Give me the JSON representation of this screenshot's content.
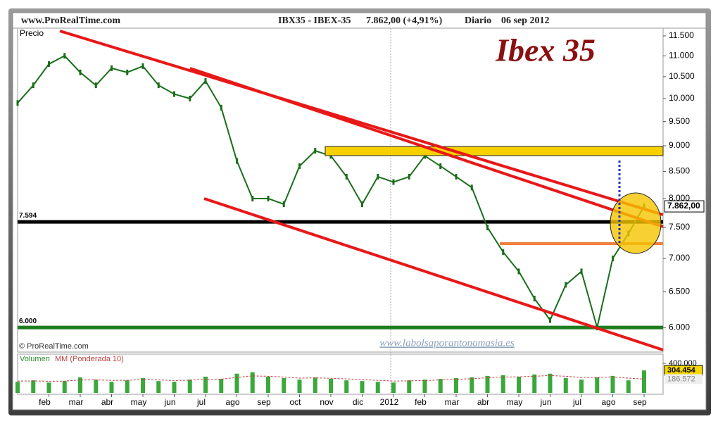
{
  "header": {
    "site": "www.ProRealTime.com",
    "symbol": "IBX35 - IBEX-35",
    "quote": "7.862,00 (+4,91%)",
    "period": "Diario",
    "date": "06 sep 2012"
  },
  "chart_data": [
    {
      "type": "line",
      "title": "Ibex 35",
      "y_label": "Precio",
      "color": "#1a6e1a",
      "log_scale": true,
      "categories": [
        null,
        null,
        "feb",
        null,
        "mar",
        null,
        "abr",
        null,
        "may",
        null,
        "jun",
        null,
        "jul",
        null,
        "ago",
        null,
        "sep",
        null,
        "oct",
        null,
        "nov",
        null,
        "dic",
        null,
        "2012",
        null,
        "feb",
        null,
        "mar",
        null,
        "abr",
        null,
        "may",
        null,
        "jun",
        null,
        "jul",
        null,
        "ago",
        null,
        "sep"
      ],
      "values": [
        9900,
        10300,
        10800,
        11000,
        10600,
        10300,
        10700,
        10600,
        10750,
        10300,
        10100,
        10000,
        10400,
        9800,
        8700,
        8000,
        8000,
        7900,
        8600,
        8900,
        8800,
        8400,
        7900,
        8400,
        8300,
        8400,
        8800,
        8600,
        8400,
        8200,
        7500,
        7100,
        6800,
        6400,
        6100,
        6600,
        6800,
        6000,
        7000,
        7400,
        7862
      ],
      "ylim": [
        5680,
        11700
      ],
      "yticks": [
        {
          "value": 6000,
          "label": "6.000"
        },
        {
          "value": 6500,
          "label": "6.500"
        },
        {
          "value": 7000,
          "label": "7.000"
        },
        {
          "value": 7500,
          "label": "7.500"
        },
        {
          "value": 8000,
          "label": "8.000"
        },
        {
          "value": 8500,
          "label": "8.500"
        },
        {
          "value": 9000,
          "label": "9.000"
        },
        {
          "value": 9500,
          "label": "9.500"
        },
        {
          "value": 10000,
          "label": "10.000"
        },
        {
          "value": 10500,
          "label": "10.500"
        },
        {
          "value": 11000,
          "label": "11.000"
        },
        {
          "value": 11500,
          "label": "11.500"
        }
      ],
      "levels": [
        {
          "value": 7594,
          "label": "7.594",
          "color": "#000000"
        },
        {
          "value": 6000,
          "label": "6.000",
          "color": "#1e7d1e"
        }
      ],
      "last_value": {
        "value": 7862,
        "label": "7.862,00"
      },
      "copyright": "© ProRealTime.com",
      "watermark": "www.labolsaporantonomasia.es"
    },
    {
      "type": "bar",
      "series": [
        {
          "name": "Volumen",
          "color": "#3aa83a",
          "values": [
            150000,
            170000,
            140000,
            160000,
            210000,
            180000,
            150000,
            170000,
            200000,
            160000,
            150000,
            180000,
            220000,
            190000,
            260000,
            280000,
            220000,
            200000,
            180000,
            210000,
            190000,
            170000,
            160000,
            150000,
            140000,
            170000,
            180000,
            190000,
            200000,
            210000,
            230000,
            240000,
            220000,
            250000,
            260000,
            200000,
            180000,
            210000,
            230000,
            170000,
            304454
          ],
          "last_label": "304.454"
        },
        {
          "name": "MM (Ponderada 10)",
          "color": "#c04040",
          "values": [
            160000,
            162000,
            158000,
            160000,
            175000,
            176000,
            170000,
            171000,
            180000,
            175000,
            168000,
            172000,
            185000,
            186000,
            210000,
            230000,
            225000,
            215000,
            200000,
            203000,
            198000,
            190000,
            180000,
            170000,
            160000,
            163000,
            168000,
            175000,
            183000,
            192000,
            205000,
            215000,
            217000,
            226000,
            235000,
            225000,
            210000,
            210000,
            217000,
            200000,
            186572
          ],
          "last_label": "186.572"
        }
      ],
      "ylim": [
        0,
        505000
      ],
      "yticks": [
        {
          "value": 400000,
          "label": "400.000"
        }
      ]
    }
  ]
}
